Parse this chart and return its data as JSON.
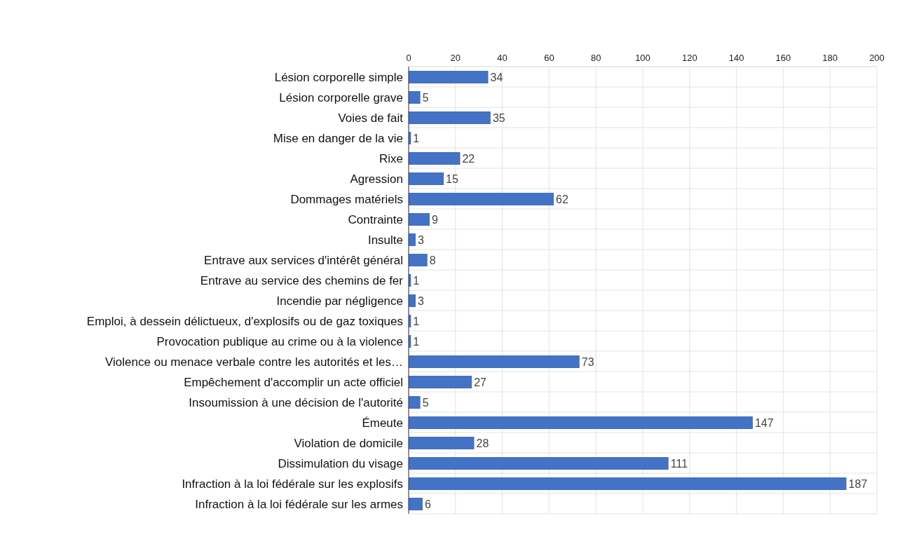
{
  "chart_data": {
    "type": "bar",
    "orientation": "horizontal",
    "categories": [
      "Lésion corporelle simple",
      "Lésion corporelle grave",
      "Voies de fait",
      "Mise en danger de la vie",
      "Rixe",
      "Agression",
      "Dommages matériels",
      "Contrainte",
      "Insulte",
      "Entrave aux services d'intérêt général",
      "Entrave au service des chemins de fer ",
      "Incendie par négligence",
      "Emploi, à dessein délictueux, d'explosifs ou de gaz toxiques",
      "Provocation publique au crime ou à la violence",
      "Violence ou menace verbale contre les autorités et les…",
      "Empêchement d'accomplir un acte officiel",
      "Insoumission à une décision de l'autorité",
      "Émeute",
      "Violation de domicile",
      "Dissimulation du visage",
      "Infraction à la loi fédérale sur les explosifs",
      "Infraction à la loi fédérale sur les armes"
    ],
    "values": [
      34,
      5,
      35,
      1,
      22,
      15,
      62,
      9,
      3,
      8,
      1,
      3,
      1,
      1,
      73,
      27,
      5,
      147,
      28,
      111,
      187,
      6
    ],
    "color": "#4472c4",
    "xlim": [
      0,
      200
    ],
    "xticks": [
      0,
      20,
      40,
      60,
      80,
      100,
      120,
      140,
      160,
      180,
      200
    ],
    "grid": true,
    "data_labels": true
  }
}
